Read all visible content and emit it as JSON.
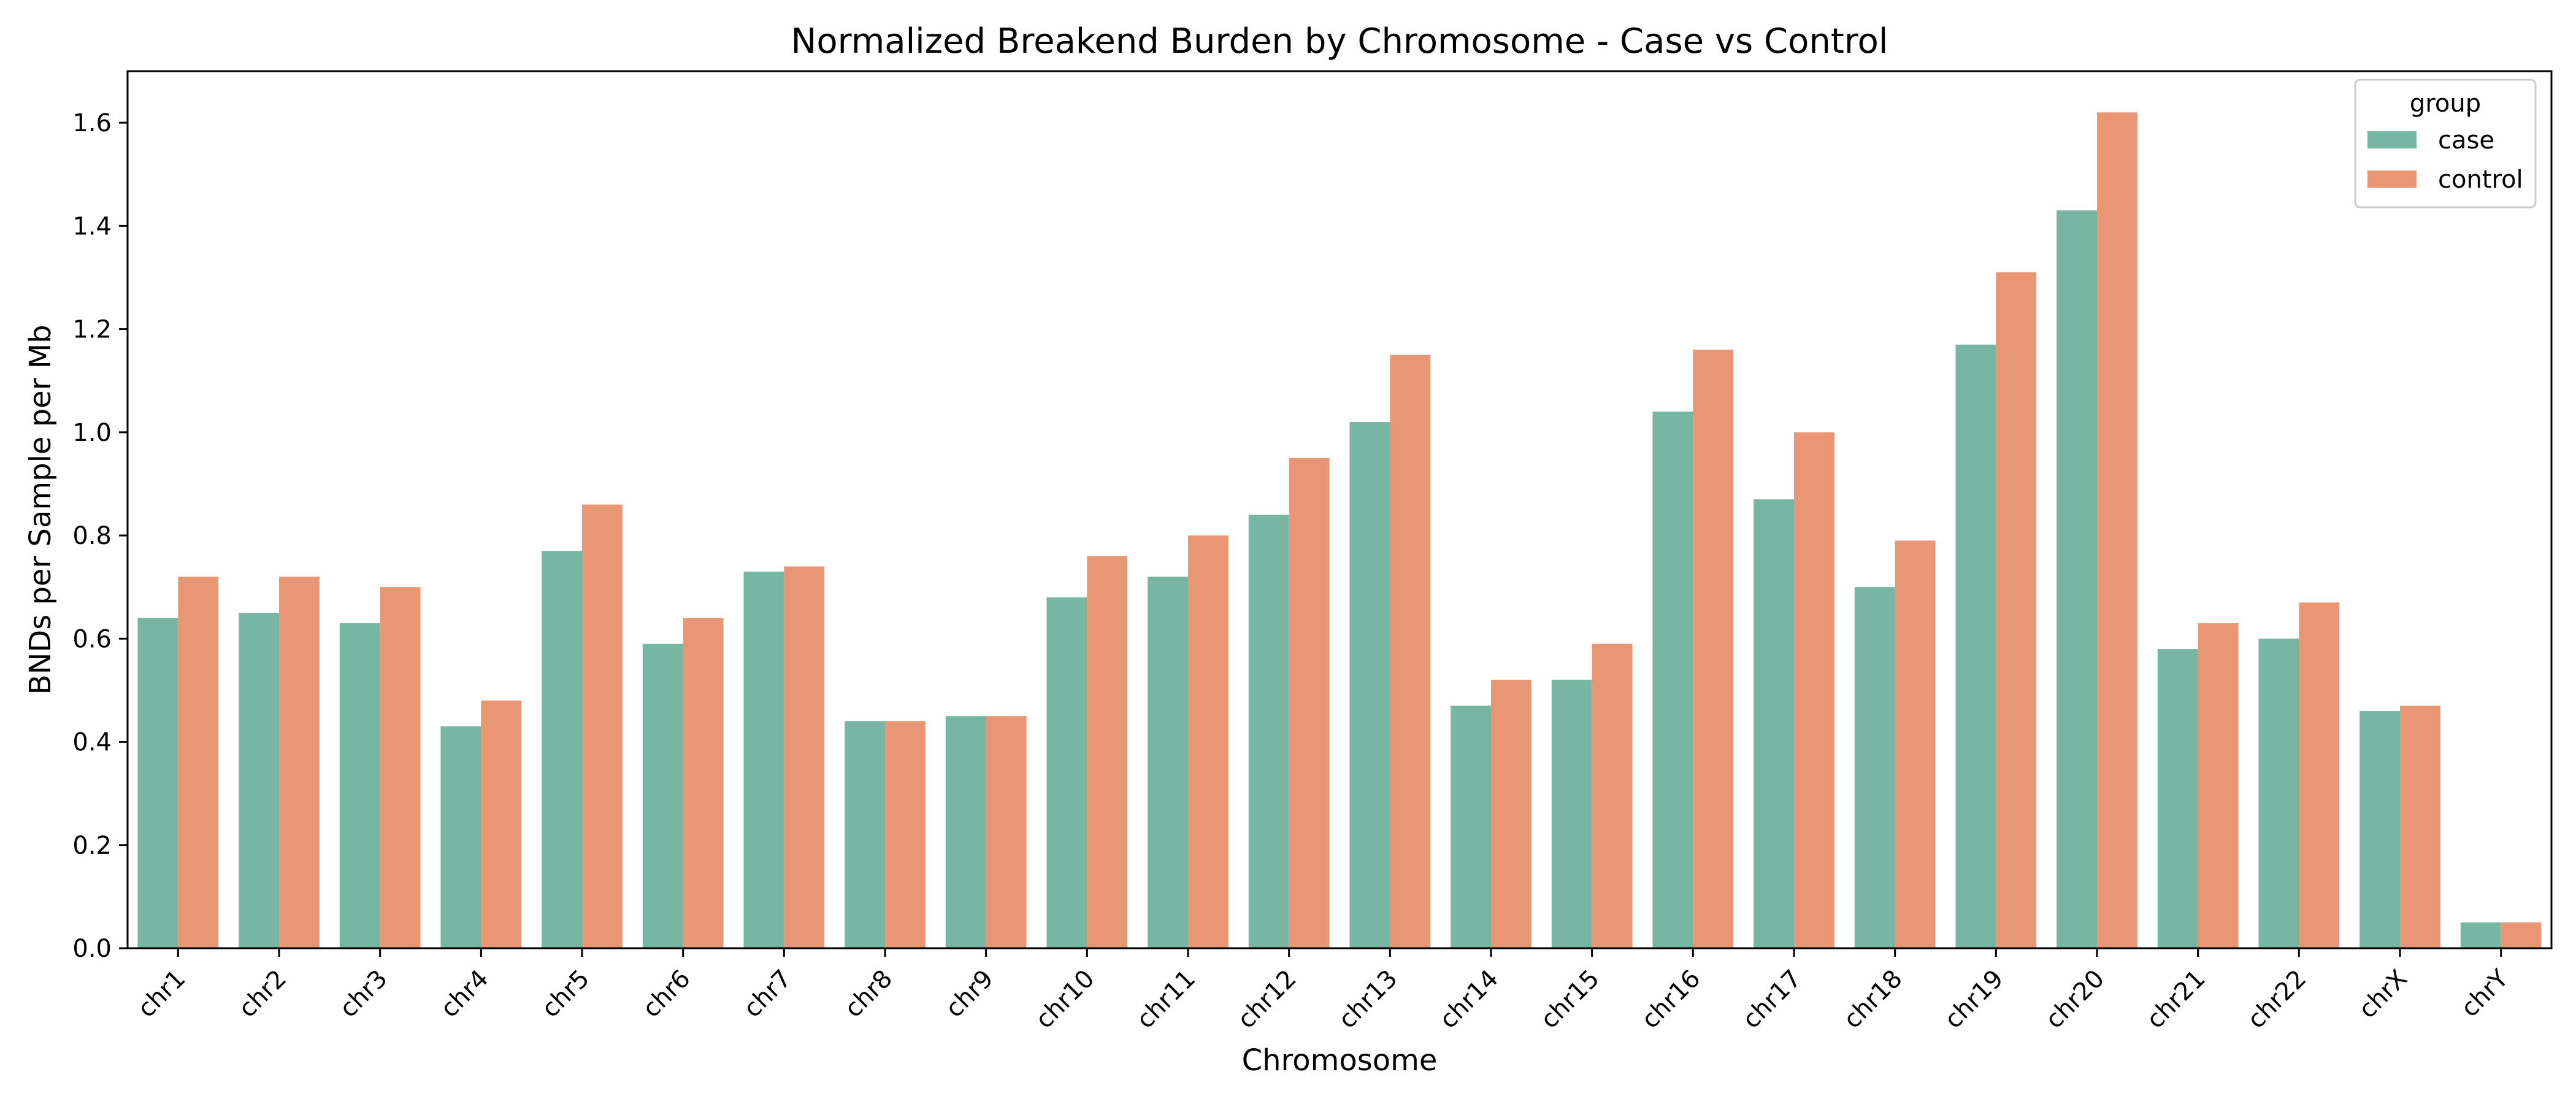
{
  "chart_data": {
    "type": "bar",
    "title": "Normalized Breakend Burden by Chromosome - Case vs Control",
    "xlabel": "Chromosome",
    "ylabel": "BNDs per Sample per Mb",
    "ylim": [
      0,
      1.7
    ],
    "yticks": [
      0.0,
      0.2,
      0.4,
      0.6,
      0.8,
      1.0,
      1.2,
      1.4,
      1.6
    ],
    "grid": false,
    "legend": {
      "title": "group",
      "placement": "top-right"
    },
    "categories": [
      "chr1",
      "chr2",
      "chr3",
      "chr4",
      "chr5",
      "chr6",
      "chr7",
      "chr8",
      "chr9",
      "chr10",
      "chr11",
      "chr12",
      "chr13",
      "chr14",
      "chr15",
      "chr16",
      "chr17",
      "chr18",
      "chr19",
      "chr20",
      "chr21",
      "chr22",
      "chrX",
      "chrY"
    ],
    "series": [
      {
        "name": "case",
        "color": "#76b6a2",
        "values": [
          0.64,
          0.65,
          0.63,
          0.43,
          0.77,
          0.59,
          0.73,
          0.44,
          0.45,
          0.68,
          0.72,
          0.84,
          1.02,
          0.47,
          0.52,
          1.04,
          0.87,
          0.7,
          1.17,
          1.43,
          0.58,
          0.6,
          0.46,
          0.05
        ]
      },
      {
        "name": "control",
        "color": "#e99675",
        "values": [
          0.72,
          0.72,
          0.7,
          0.48,
          0.86,
          0.64,
          0.74,
          0.44,
          0.45,
          0.76,
          0.8,
          0.95,
          1.15,
          0.52,
          0.59,
          1.16,
          1.0,
          0.79,
          1.31,
          1.62,
          0.63,
          0.67,
          0.47,
          0.05
        ]
      }
    ]
  }
}
